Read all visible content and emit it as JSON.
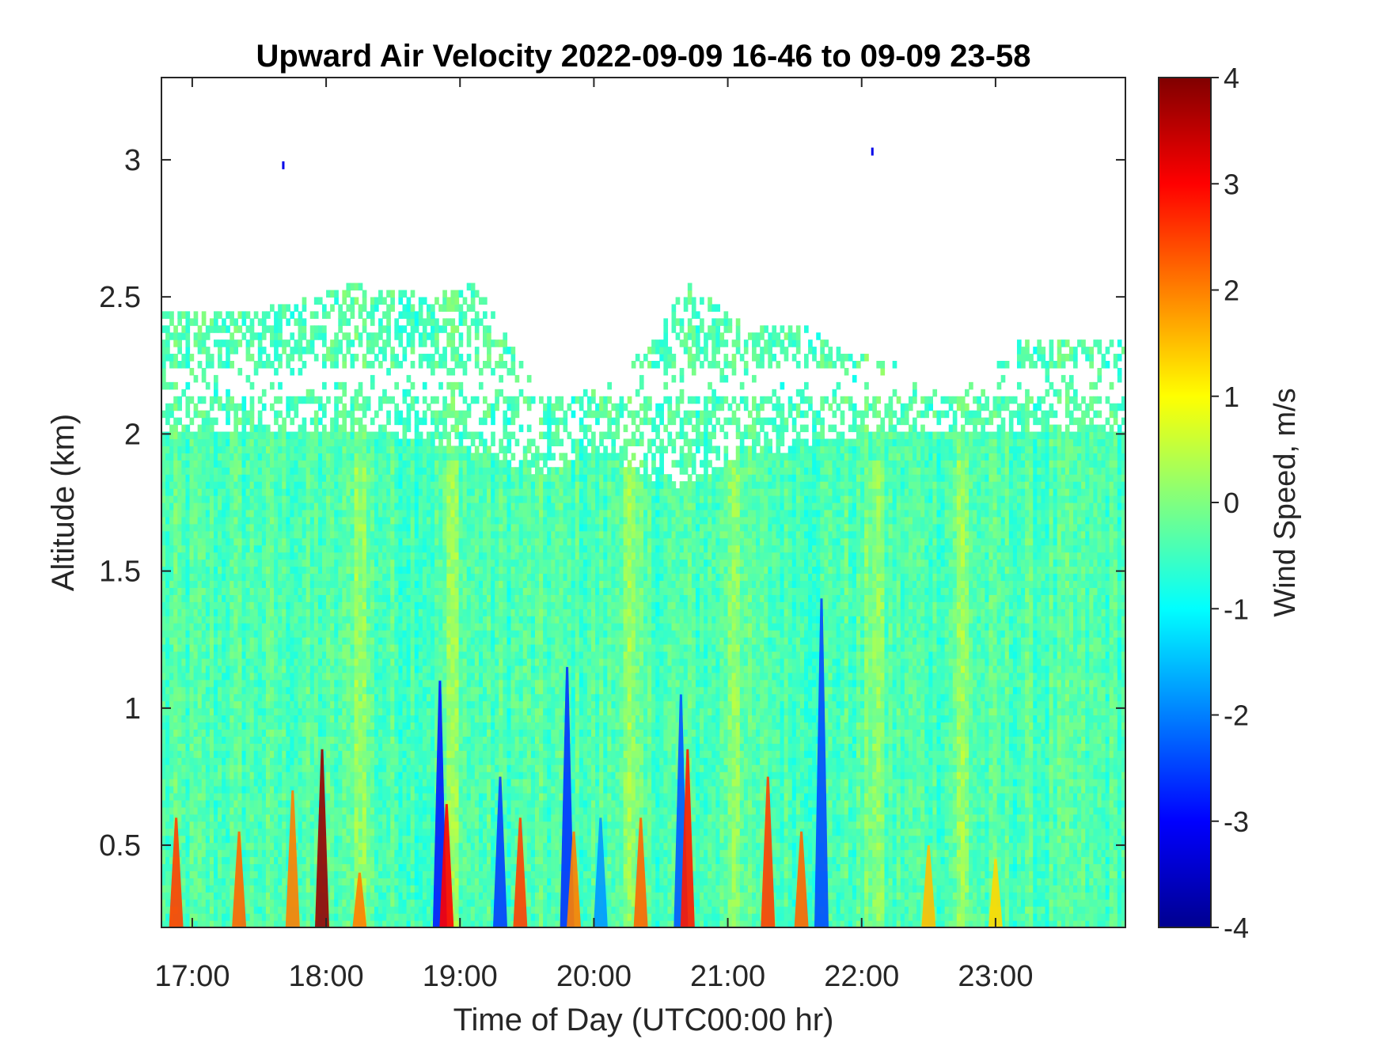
{
  "chart_data": {
    "type": "heatmap",
    "title": "Upward Air Velocity 2022-09-09 16-46 to 09-09 23-58",
    "xlabel": "Time of Day (UTC00:00 hr)",
    "ylabel": "Altitude (km)",
    "colorbar_label": "Wind Speed, m/s",
    "x_range_hours": [
      16.77,
      23.97
    ],
    "y_range_km": [
      0.2,
      3.3
    ],
    "x_ticks": [
      {
        "label": "17:00",
        "hour": 17
      },
      {
        "label": "18:00",
        "hour": 18
      },
      {
        "label": "19:00",
        "hour": 19
      },
      {
        "label": "20:00",
        "hour": 20
      },
      {
        "label": "21:00",
        "hour": 21
      },
      {
        "label": "22:00",
        "hour": 22
      },
      {
        "label": "23:00",
        "hour": 23
      }
    ],
    "y_ticks": [
      {
        "label": "0.5",
        "km": 0.5
      },
      {
        "label": "1",
        "km": 1
      },
      {
        "label": "1.5",
        "km": 1.5
      },
      {
        "label": "2",
        "km": 2
      },
      {
        "label": "2.5",
        "km": 2.5
      },
      {
        "label": "3",
        "km": 3
      }
    ],
    "colorbar_range": [
      -4,
      4
    ],
    "colorbar_ticks": [
      {
        "label": "4",
        "value": 4
      },
      {
        "label": "3",
        "value": 3
      },
      {
        "label": "2",
        "value": 2
      },
      {
        "label": "1",
        "value": 1
      },
      {
        "label": "0",
        "value": 0
      },
      {
        "label": "-1",
        "value": -1
      },
      {
        "label": "-2",
        "value": -2
      },
      {
        "label": "-3",
        "value": -3
      },
      {
        "label": "-4",
        "value": -4
      }
    ],
    "colormap": "jet",
    "colormap_stops": [
      "#00008f",
      "#0000ff",
      "#00ffff",
      "#ffff00",
      "#ff0000",
      "#800000"
    ],
    "background_value": -0.4,
    "data_top_km": [
      {
        "hour": 16.77,
        "km": 2.45
      },
      {
        "hour": 17.5,
        "km": 2.45
      },
      {
        "hour": 18.2,
        "km": 2.55
      },
      {
        "hour": 18.8,
        "km": 2.5
      },
      {
        "hour": 19.1,
        "km": 2.55
      },
      {
        "hour": 19.3,
        "km": 2.4
      },
      {
        "hour": 19.6,
        "km": 2.15
      },
      {
        "hour": 20.0,
        "km": 2.2
      },
      {
        "hour": 20.4,
        "km": 2.3
      },
      {
        "hour": 20.7,
        "km": 2.55
      },
      {
        "hour": 21.1,
        "km": 2.4
      },
      {
        "hour": 21.6,
        "km": 2.4
      },
      {
        "hour": 21.9,
        "km": 2.3
      },
      {
        "hour": 22.3,
        "km": 2.25
      },
      {
        "hour": 22.7,
        "km": 2.15
      },
      {
        "hour": 23.2,
        "km": 2.35
      },
      {
        "hour": 23.97,
        "km": 2.35
      }
    ],
    "dense_top_km": [
      {
        "hour": 16.77,
        "km": 2.0
      },
      {
        "hour": 18.5,
        "km": 2.0
      },
      {
        "hour": 19.0,
        "km": 1.95
      },
      {
        "hour": 19.6,
        "km": 1.85
      },
      {
        "hour": 20.0,
        "km": 1.95
      },
      {
        "hour": 20.6,
        "km": 1.8
      },
      {
        "hour": 21.0,
        "km": 1.9
      },
      {
        "hour": 21.5,
        "km": 1.95
      },
      {
        "hour": 22.0,
        "km": 2.0
      },
      {
        "hour": 23.97,
        "km": 2.0
      }
    ],
    "upper_layer_gap_km": [
      2.15,
      2.25
    ],
    "updraft_columns": [
      {
        "hour": 16.88,
        "value": 2.5,
        "top_km": 0.6
      },
      {
        "hour": 17.35,
        "value": 2.2,
        "top_km": 0.55
      },
      {
        "hour": 17.75,
        "value": 2.0,
        "top_km": 0.7
      },
      {
        "hour": 17.97,
        "value": 3.8,
        "top_km": 0.85
      },
      {
        "hour": 18.25,
        "value": 2.0,
        "top_km": 0.4
      },
      {
        "hour": 18.9,
        "value": 3.0,
        "top_km": 0.65
      },
      {
        "hour": 19.45,
        "value": 2.5,
        "top_km": 0.6
      },
      {
        "hour": 19.85,
        "value": 2.0,
        "top_km": 0.55
      },
      {
        "hour": 20.35,
        "value": 2.2,
        "top_km": 0.6
      },
      {
        "hour": 20.7,
        "value": 2.8,
        "top_km": 0.85
      },
      {
        "hour": 21.3,
        "value": 2.5,
        "top_km": 0.75
      },
      {
        "hour": 21.55,
        "value": 2.2,
        "top_km": 0.55
      },
      {
        "hour": 22.5,
        "value": 1.5,
        "top_km": 0.5
      },
      {
        "hour": 23.0,
        "value": 1.3,
        "top_km": 0.45
      }
    ],
    "downdraft_columns": [
      {
        "hour": 18.85,
        "value": -2.8,
        "top_km": 1.1
      },
      {
        "hour": 19.3,
        "value": -2.5,
        "top_km": 0.75
      },
      {
        "hour": 19.8,
        "value": -2.6,
        "top_km": 1.15
      },
      {
        "hour": 20.65,
        "value": -2.3,
        "top_km": 1.05
      },
      {
        "hour": 21.7,
        "value": -2.4,
        "top_km": 1.4
      },
      {
        "hour": 20.05,
        "value": -1.8,
        "top_km": 0.6
      }
    ],
    "positive_streaks": [
      {
        "hour": 18.25,
        "value": 0.7
      },
      {
        "hour": 18.95,
        "value": 0.6
      },
      {
        "hour": 20.25,
        "value": 0.6
      },
      {
        "hour": 21.05,
        "value": 0.7
      },
      {
        "hour": 22.1,
        "value": 0.6
      },
      {
        "hour": 22.75,
        "value": 0.6
      }
    ],
    "isolated_points": [
      {
        "hour": 17.68,
        "km": 2.98,
        "value": -3.2
      },
      {
        "hour": 22.08,
        "km": 3.03,
        "value": -3.2
      }
    ]
  }
}
